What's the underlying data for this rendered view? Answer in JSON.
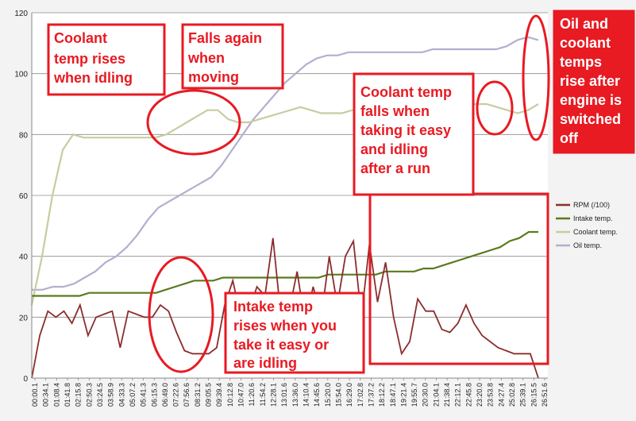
{
  "chart_data": {
    "type": "line",
    "ylim": [
      0,
      120
    ],
    "y_ticks": [
      "0",
      "20",
      "40",
      "60",
      "80",
      "100",
      "120"
    ],
    "grid": "horizontal",
    "legend_position": "right",
    "x_tick_labels": [
      "00:00.1",
      "00:34.1",
      "01:08.4",
      "01:41.8",
      "02:15.8",
      "02:50.3",
      "03:24.5",
      "03:58.9",
      "04:33.3",
      "05:07.2",
      "05:41.3",
      "06:15.3",
      "06:49.0",
      "07:22.6",
      "07:56.6",
      "08:31.2",
      "09:05.5",
      "09:39.4",
      "10:12.8",
      "10:47.0",
      "11:20.6",
      "11:54.2",
      "12:28.1",
      "13:01.6",
      "13:36.0",
      "14:10.4",
      "14:45.6",
      "15:20.0",
      "15:54.0",
      "16:29.0",
      "17:02.8",
      "17:37.2",
      "18:12.2",
      "18:47.1",
      "19:21.4",
      "19:55.7",
      "20:30.0",
      "21:04.1",
      "21:38.4",
      "22:12.1",
      "22:45.8",
      "23:20.0",
      "23:53.8",
      "24:27.4",
      "25:02.8",
      "25:39.1",
      "26:15.5",
      "26:51.6"
    ],
    "series": [
      {
        "name": "RPM (/100)",
        "color": "#8b2d2d",
        "values": [
          0,
          14,
          22,
          20,
          22,
          18,
          24,
          14,
          20,
          21,
          22,
          10,
          22,
          21,
          20,
          20,
          24,
          22,
          15,
          9,
          8,
          8,
          8,
          10,
          24,
          32,
          20,
          22,
          30,
          27,
          46,
          20,
          22,
          35,
          18,
          30,
          20,
          40,
          24,
          40,
          45,
          20,
          44,
          25,
          38,
          20,
          8,
          12,
          26,
          22,
          22,
          16,
          15,
          18,
          24,
          18,
          14,
          12,
          10,
          9,
          8,
          8,
          8,
          0
        ]
      },
      {
        "name": "Intake temp.",
        "color": "#5a7a1e",
        "values": [
          27,
          27,
          27,
          27,
          27,
          27,
          28,
          28,
          28,
          28,
          28,
          28,
          28,
          28,
          29,
          30,
          31,
          32,
          32,
          32,
          33,
          33,
          33,
          33,
          33,
          33,
          33,
          33,
          33,
          33,
          33,
          34,
          34,
          34,
          34,
          34,
          34,
          35,
          35,
          35,
          35,
          36,
          36,
          37,
          38,
          39,
          40,
          41,
          42,
          43,
          45,
          46,
          48,
          48
        ]
      },
      {
        "name": "Coolant temp.",
        "color": "#c8cca0",
        "values": [
          24,
          40,
          60,
          75,
          80,
          79,
          79,
          79,
          79,
          79,
          79,
          79,
          79,
          80,
          82,
          84,
          86,
          88,
          88,
          85,
          84,
          84,
          85,
          86,
          87,
          88,
          89,
          88,
          87,
          87,
          87,
          88,
          88,
          88,
          88,
          88,
          88,
          89,
          89,
          89,
          90,
          90,
          90,
          90,
          90,
          89,
          88,
          87,
          88,
          90
        ]
      },
      {
        "name": "Oil temp.",
        "color": "#b4aecf",
        "values": [
          29,
          29,
          30,
          30,
          31,
          33,
          35,
          38,
          40,
          43,
          47,
          52,
          56,
          58,
          60,
          62,
          64,
          66,
          70,
          75,
          80,
          85,
          89,
          93,
          97,
          100,
          103,
          105,
          106,
          106,
          107,
          107,
          107,
          107,
          107,
          107,
          107,
          107,
          108,
          108,
          108,
          108,
          108,
          108,
          108,
          109,
          111,
          112,
          111
        ]
      }
    ]
  },
  "annotations": [
    {
      "id": "coolant-idle",
      "lines": [
        "Coolant",
        "temp rises",
        "when idling"
      ]
    },
    {
      "id": "falls-moving",
      "lines": [
        "Falls again",
        "when",
        "moving"
      ]
    },
    {
      "id": "coolant-falls",
      "lines": [
        "Coolant temp",
        "falls when",
        "taking it easy",
        "and idling",
        "after a run"
      ]
    },
    {
      "id": "oil-coolant-rise",
      "lines": [
        "Oil and",
        "coolant",
        "temps",
        "rise after",
        "engine is",
        "switched",
        "off"
      ]
    },
    {
      "id": "intake-rises",
      "lines": [
        "Intake temp",
        "rises when you",
        "take it easy or",
        "are idling"
      ]
    }
  ]
}
